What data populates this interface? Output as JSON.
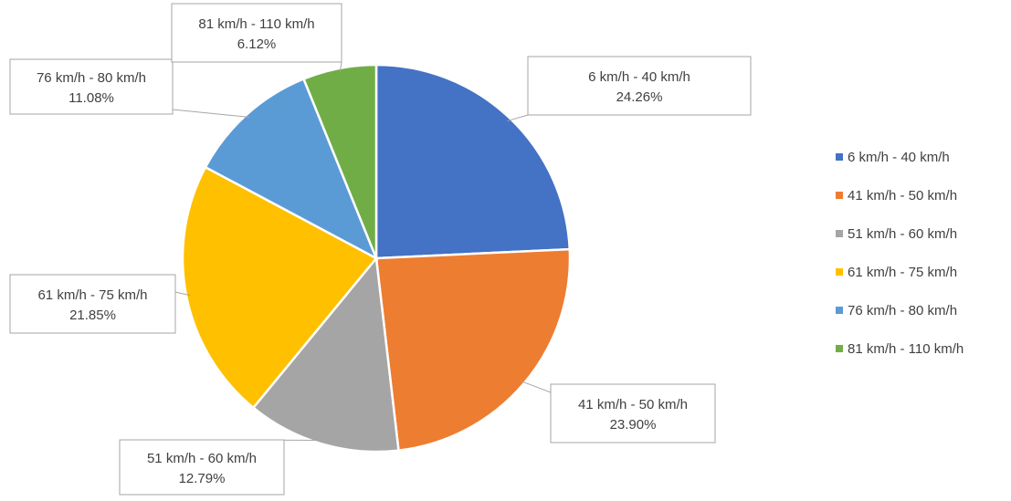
{
  "chart_data": {
    "type": "pie",
    "title": "",
    "legend_position": "right",
    "slices": [
      {
        "label": "6 km/h - 40 km/h",
        "value": 24.26,
        "display": "24.26%",
        "color": "#4472c4"
      },
      {
        "label": "41 km/h - 50 km/h",
        "value": 23.9,
        "display": "23.90%",
        "color": "#ed7d31"
      },
      {
        "label": "51 km/h - 60 km/h",
        "value": 12.79,
        "display": "12.79%",
        "color": "#a5a5a5"
      },
      {
        "label": "61 km/h - 75 km/h",
        "value": 21.85,
        "display": "21.85%",
        "color": "#ffc000"
      },
      {
        "label": "76 km/h - 80 km/h",
        "value": 11.08,
        "display": "11.08%",
        "color": "#5b9bd5"
      },
      {
        "label": "81 km/h - 110 km/h",
        "value": 6.12,
        "display": "6.12%",
        "color": "#70ad47"
      }
    ]
  }
}
